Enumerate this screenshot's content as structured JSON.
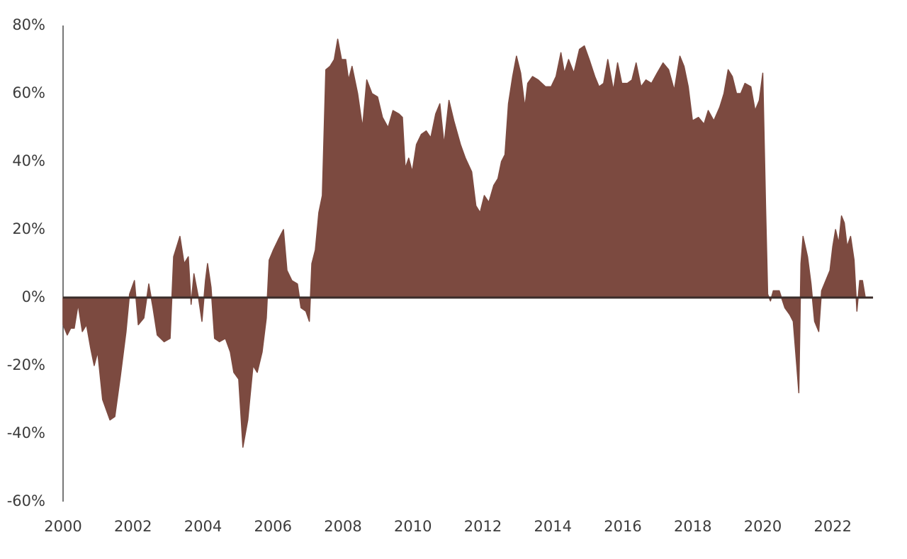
{
  "chart_data": {
    "type": "area",
    "color": "#7c4a40",
    "baseline_color": "#3a2c2a",
    "xlim": [
      2000,
      2023.15
    ],
    "xticks": [
      2000,
      2002,
      2004,
      2006,
      2008,
      2010,
      2012,
      2014,
      2016,
      2018,
      2020,
      2022
    ],
    "ylim": [
      -60,
      80
    ],
    "yticks": [
      {
        "value": -60,
        "label": "-60%"
      },
      {
        "value": -40,
        "label": "-40%"
      },
      {
        "value": -20,
        "label": "-20%"
      },
      {
        "value": 0,
        "label": "0%"
      },
      {
        "value": 20,
        "label": "20%"
      },
      {
        "value": 40,
        "label": "40%"
      },
      {
        "value": 60,
        "label": "60%"
      },
      {
        "value": 80,
        "label": "80%"
      }
    ],
    "x": [
      2000.0,
      2000.12,
      2000.22,
      2000.32,
      2000.43,
      2000.55,
      2000.67,
      2000.79,
      2000.89,
      2000.99,
      2001.13,
      2001.34,
      2001.48,
      2001.64,
      2001.8,
      2001.9,
      2002.04,
      2002.15,
      2002.31,
      2002.45,
      2002.57,
      2002.69,
      2002.89,
      2003.06,
      2003.16,
      2003.34,
      2003.46,
      2003.58,
      2003.66,
      2003.74,
      2003.87,
      2003.97,
      2004.07,
      2004.13,
      2004.23,
      2004.33,
      2004.47,
      2004.64,
      2004.78,
      2004.88,
      2005.02,
      2005.14,
      2005.28,
      2005.43,
      2005.55,
      2005.69,
      2005.81,
      2005.89,
      2006.01,
      2006.15,
      2006.3,
      2006.4,
      2006.54,
      2006.7,
      2006.8,
      2006.94,
      2007.04,
      2007.11,
      2007.21,
      2007.31,
      2007.41,
      2007.51,
      2007.63,
      2007.75,
      2007.85,
      2007.96,
      2008.08,
      2008.16,
      2008.26,
      2008.42,
      2008.56,
      2008.68,
      2008.83,
      2008.99,
      2009.13,
      2009.29,
      2009.43,
      2009.6,
      2009.7,
      2009.78,
      2009.88,
      2009.98,
      2010.1,
      2010.24,
      2010.38,
      2010.51,
      2010.65,
      2010.77,
      2010.89,
      2011.03,
      2011.17,
      2011.36,
      2011.5,
      2011.68,
      2011.8,
      2011.92,
      2012.04,
      2012.17,
      2012.31,
      2012.43,
      2012.53,
      2012.63,
      2012.73,
      2012.85,
      2012.96,
      2013.08,
      2013.2,
      2013.28,
      2013.42,
      2013.58,
      2013.79,
      2013.95,
      2014.09,
      2014.23,
      2014.33,
      2014.45,
      2014.6,
      2014.76,
      2014.9,
      2015.04,
      2015.2,
      2015.32,
      2015.45,
      2015.57,
      2015.73,
      2015.85,
      2015.97,
      2016.13,
      2016.26,
      2016.38,
      2016.52,
      2016.66,
      2016.82,
      2016.98,
      2017.15,
      2017.31,
      2017.47,
      2017.63,
      2017.75,
      2017.87,
      2017.99,
      2018.16,
      2018.32,
      2018.44,
      2018.6,
      2018.77,
      2018.89,
      2019.01,
      2019.13,
      2019.25,
      2019.37,
      2019.49,
      2019.66,
      2019.78,
      2019.9,
      2020.0,
      2020.08,
      2020.14,
      2020.22,
      2020.3,
      2020.47,
      2020.63,
      2020.77,
      2020.87,
      2020.97,
      2021.03,
      2021.09,
      2021.15,
      2021.28,
      2021.38,
      2021.48,
      2021.6,
      2021.68,
      2021.8,
      2021.92,
      2022.0,
      2022.08,
      2022.17,
      2022.25,
      2022.33,
      2022.41,
      2022.51,
      2022.61,
      2022.69,
      2022.77,
      2022.85,
      2022.93,
      2023.14
    ],
    "values": [
      -8,
      -11,
      -9,
      -9,
      -2,
      -10,
      -8,
      -15,
      -20,
      -16,
      -30,
      -36,
      -35,
      -23,
      -10,
      1,
      5,
      -8,
      -6,
      4,
      -3,
      -11,
      -13,
      -12,
      12,
      18,
      10,
      12,
      -2,
      7,
      0,
      -7,
      5,
      10,
      3,
      -12,
      -13,
      -12,
      -16,
      -22,
      -24,
      -44,
      -36,
      -20,
      -22,
      -16,
      -6,
      11,
      14,
      17,
      20,
      8,
      5,
      4,
      -3,
      -4,
      -7,
      10,
      14,
      25,
      30,
      67,
      68,
      70,
      76,
      70,
      70,
      64,
      68,
      60,
      50,
      64,
      60,
      59,
      53,
      50,
      55,
      54,
      53,
      38,
      41,
      37,
      45,
      48,
      49,
      47,
      54,
      57,
      45,
      58,
      52,
      45,
      41,
      37,
      27,
      25,
      30,
      28,
      33,
      35,
      40,
      42,
      57,
      65,
      71,
      66,
      56,
      63,
      65,
      64,
      62,
      62,
      65,
      72,
      66,
      70,
      66,
      73,
      74,
      70,
      65,
      62,
      63,
      70,
      61,
      69,
      63,
      63,
      64,
      69,
      62,
      64,
      63,
      66,
      69,
      67,
      61,
      71,
      68,
      62,
      52,
      53,
      51,
      55,
      52,
      56,
      60,
      67,
      65,
      60,
      60,
      63,
      62,
      55,
      58,
      66,
      27,
      1,
      -1,
      2,
      2,
      -3,
      -5,
      -7,
      -20,
      -28,
      10,
      18,
      12,
      4,
      -7,
      -10,
      2,
      5,
      8,
      15,
      20,
      16,
      24,
      22,
      15,
      18,
      11,
      -4,
      5,
      5,
      0,
      0
    ]
  }
}
